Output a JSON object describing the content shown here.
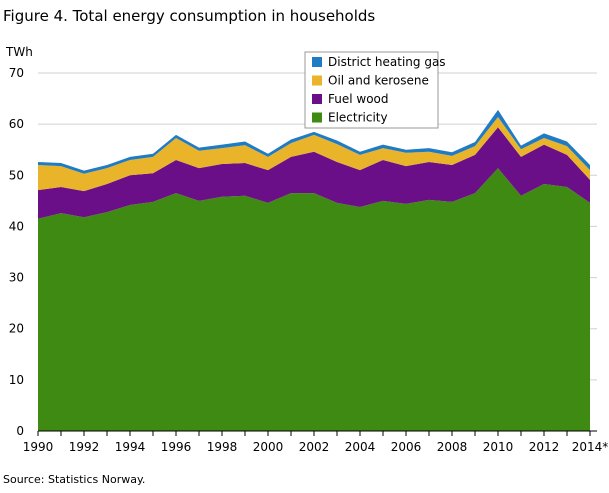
{
  "chart_data": {
    "type": "stacked_area",
    "title": "Figure 4. Total energy consumption in households",
    "y_label": "TWh",
    "source": "Source: Statistics Norway.",
    "categories": [
      "1990",
      null,
      "1992",
      null,
      "1994",
      null,
      "1996",
      null,
      "1998",
      null,
      "2000",
      null,
      "2002",
      null,
      "2004",
      null,
      "2006",
      null,
      "2008",
      null,
      "2010",
      null,
      "2012",
      null,
      "2014*"
    ],
    "series": [
      {
        "name": "District heating gas",
        "color": "#1f7bc4",
        "values": [
          0.6,
          0.6,
          0.6,
          0.6,
          0.6,
          0.6,
          0.6,
          0.6,
          0.7,
          0.7,
          0.6,
          0.7,
          0.6,
          0.7,
          0.6,
          0.7,
          0.6,
          0.7,
          0.7,
          0.8,
          1.4,
          0.7,
          0.9,
          0.9,
          1.0
        ]
      },
      {
        "name": "Oil and kerosene",
        "color": "#e9b32a",
        "values": [
          4.9,
          4.1,
          3.4,
          3.1,
          3.0,
          3.2,
          4.3,
          3.4,
          3.1,
          3.5,
          2.6,
          2.7,
          3.3,
          3.5,
          3.0,
          2.3,
          2.6,
          2.0,
          1.8,
          1.7,
          2.0,
          1.5,
          1.3,
          1.7,
          1.9
        ]
      },
      {
        "name": "Fuel wood",
        "color": "#6b0f88",
        "values": [
          5.6,
          5.1,
          5.1,
          5.5,
          5.8,
          5.6,
          6.5,
          6.4,
          6.4,
          6.4,
          6.4,
          7.1,
          8.1,
          8.0,
          7.2,
          8.0,
          7.4,
          7.4,
          7.2,
          7.5,
          8.0,
          7.6,
          7.7,
          6.3,
          4.5
        ]
      },
      {
        "name": "Electricity",
        "color": "#3f8a12",
        "values": [
          41.5,
          42.6,
          41.8,
          42.8,
          44.2,
          44.8,
          46.5,
          45.0,
          45.8,
          46.0,
          44.6,
          46.5,
          46.5,
          44.6,
          43.8,
          45.0,
          44.4,
          45.2,
          44.8,
          46.5,
          51.4,
          46.0,
          48.3,
          47.7,
          44.6
        ]
      }
    ],
    "ylim": [
      0,
      70
    ],
    "yticks": [
      0,
      10,
      20,
      30,
      40,
      50,
      60,
      70
    ],
    "grid": true
  }
}
